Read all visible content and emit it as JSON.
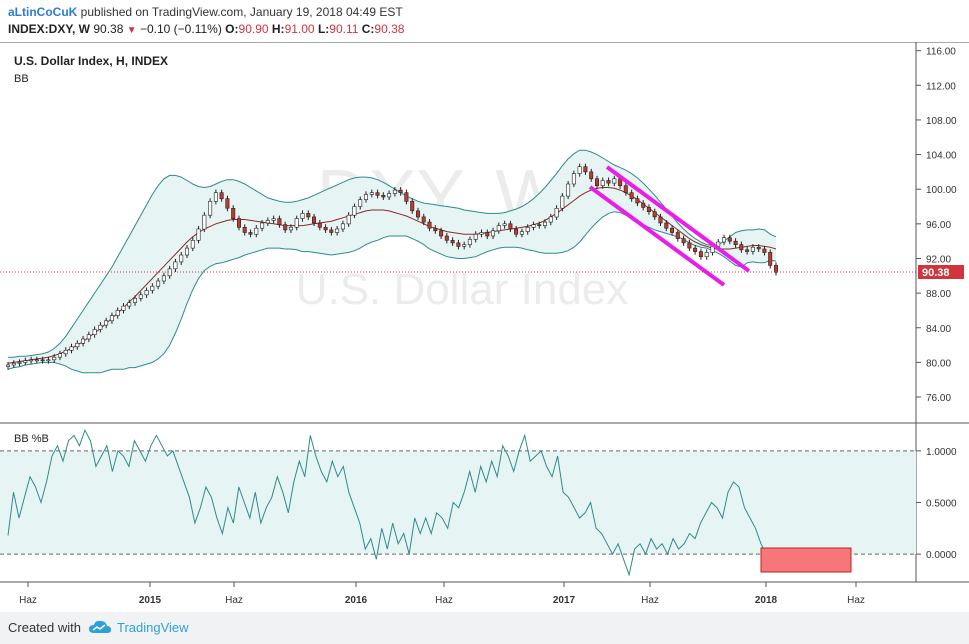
{
  "header": {
    "author": "aLtinCoCuK",
    "published_text": "published on TradingView.com, January 19, 2018 04:49 EST",
    "symbol": "INDEX:DXY, W",
    "last": "90.38",
    "change": "−0.10 (−0.11%)",
    "o_label": "O:",
    "o": "90.90",
    "h_label": "H:",
    "h": "91.00",
    "l_label": "L:",
    "l": "90.11",
    "c_label": "C:",
    "c": "90.38"
  },
  "watermark": {
    "symbol": "DXY, W",
    "name": "U.S. Dollar Index"
  },
  "colors": {
    "up": "#3b7a3b",
    "down": "#c0392b",
    "band": "#2e8b8b",
    "band_fill": "#e6f4f4",
    "basis": "#8b2a2a",
    "channel": "#e91ee9",
    "price_tag": "#d0343c",
    "osc": "#2e8b8b",
    "osc_fill": "#e6f4f4",
    "box": "#f5777a"
  },
  "chart_data": [
    {
      "type": "candlestick",
      "title": "U.S. Dollar Index, H, INDEX",
      "indicator_label": "BB",
      "ylim": [
        73,
        117
      ],
      "y_ticks": [
        "116.00",
        "112.00",
        "108.00",
        "104.00",
        "100.00",
        "96.00",
        "92.00",
        "88.00",
        "84.00",
        "80.00",
        "76.00"
      ],
      "last_price_label": "90.38",
      "x_labels": [
        "Haz",
        "2015",
        "Haz",
        "2016",
        "Haz",
        "2017",
        "Haz",
        "2018",
        "Haz"
      ],
      "series": [
        {
          "name": "close (weekly, approx.)",
          "values": [
            79.7,
            79.9,
            80.0,
            80.2,
            80.3,
            80.3,
            80.2,
            80.3,
            80.6,
            81.0,
            81.4,
            81.8,
            82.2,
            82.7,
            83.2,
            83.8,
            84.3,
            84.8,
            85.4,
            86.0,
            86.5,
            86.9,
            87.4,
            87.8,
            88.3,
            88.8,
            89.4,
            90.0,
            90.8,
            91.6,
            92.4,
            93.2,
            94.1,
            95.4,
            97.0,
            98.6,
            99.6,
            98.9,
            97.8,
            96.6,
            95.6,
            95.0,
            94.8,
            95.5,
            96.1,
            96.4,
            96.6,
            95.9,
            95.3,
            95.6,
            96.6,
            97.2,
            96.8,
            96.1,
            95.6,
            95.3,
            95.0,
            95.4,
            96.0,
            97.0,
            98.0,
            98.8,
            99.4,
            99.6,
            99.3,
            99.1,
            99.5,
            99.9,
            99.6,
            98.6,
            97.5,
            96.8,
            96.2,
            95.5,
            95.2,
            94.6,
            94.1,
            93.8,
            93.4,
            93.6,
            94.2,
            94.8,
            95.0,
            94.6,
            95.2,
            95.8,
            96.0,
            95.4,
            94.8,
            95.1,
            95.6,
            95.9,
            95.8,
            96.2,
            96.8,
            97.8,
            99.2,
            100.6,
            101.8,
            102.6,
            102.0,
            101.2,
            100.4,
            101.0,
            100.7,
            101.2,
            100.4,
            99.6,
            98.9,
            98.4,
            97.9,
            97.4,
            96.8,
            96.1,
            95.5,
            95.0,
            94.3,
            93.8,
            93.2,
            92.8,
            92.2,
            92.7,
            93.4,
            93.9,
            94.4,
            94.0,
            93.6,
            93.0,
            92.8,
            93.3,
            93.1,
            92.7,
            91.2,
            90.4
          ]
        },
        {
          "name": "BB upper (approx.)",
          "values": [
            80.6,
            80.6,
            80.7,
            80.7,
            80.8,
            80.9,
            81.0,
            81.2,
            81.6,
            82.2,
            83.0,
            84.0,
            85.0,
            86.0,
            87.0,
            88.0,
            89.0,
            90.0,
            91.0,
            92.2,
            93.4,
            94.6,
            95.8,
            97.0,
            98.2,
            99.4,
            100.4,
            101.2,
            101.6,
            101.6,
            101.4,
            101.0,
            100.6,
            100.3,
            100.2,
            100.3,
            100.6,
            100.9,
            101.1,
            101.1,
            100.9,
            100.6,
            100.2,
            99.8,
            99.4,
            99.0,
            98.8,
            98.6,
            98.5,
            98.5,
            98.6,
            98.8,
            99.0,
            99.3,
            99.6,
            99.9,
            100.2,
            100.5,
            100.8,
            101.1,
            101.3,
            101.4,
            101.4,
            101.3,
            101.1,
            100.8,
            100.4,
            100.0,
            99.6,
            99.2,
            98.9,
            98.6,
            98.4,
            98.3,
            98.2,
            98.1,
            98.0,
            97.9,
            97.8,
            97.6,
            97.5,
            97.4,
            97.3,
            97.2,
            97.2,
            97.2,
            97.3,
            97.5,
            97.7,
            98.0,
            98.4,
            98.9,
            99.5,
            100.2,
            101.0,
            101.8,
            102.7,
            103.5,
            104.1,
            104.5,
            104.5,
            104.3,
            104.0,
            103.6,
            103.2,
            102.8,
            102.5,
            102.2,
            101.8,
            101.3,
            100.7,
            100.0,
            99.3,
            98.5,
            97.7,
            96.9,
            96.1,
            95.4,
            94.8,
            94.3,
            93.9,
            93.6,
            93.5,
            93.6,
            94.0,
            94.5,
            95.0,
            95.2,
            95.3,
            95.3,
            95.4,
            95.3,
            94.8,
            94.5
          ]
        },
        {
          "name": "BB basis (approx.)",
          "values": [
            79.9,
            80.0,
            80.1,
            80.2,
            80.3,
            80.4,
            80.5,
            80.6,
            80.8,
            81.0,
            81.3,
            81.6,
            82.0,
            82.4,
            82.9,
            83.4,
            83.9,
            84.5,
            85.1,
            85.7,
            86.3,
            87.0,
            87.6,
            88.3,
            89.0,
            89.7,
            90.4,
            91.1,
            91.8,
            92.5,
            93.2,
            93.9,
            94.5,
            95.0,
            95.4,
            95.7,
            96.0,
            96.2,
            96.4,
            96.5,
            96.5,
            96.5,
            96.4,
            96.3,
            96.2,
            96.1,
            96.0,
            95.9,
            95.8,
            95.8,
            95.8,
            95.8,
            95.9,
            96.0,
            96.1,
            96.2,
            96.3,
            96.5,
            96.7,
            96.9,
            97.1,
            97.3,
            97.5,
            97.6,
            97.6,
            97.6,
            97.5,
            97.3,
            97.1,
            96.9,
            96.6,
            96.3,
            96.0,
            95.7,
            95.5,
            95.3,
            95.1,
            95.0,
            94.9,
            94.8,
            94.8,
            94.8,
            94.9,
            95.0,
            95.1,
            95.2,
            95.3,
            95.4,
            95.5,
            95.6,
            95.7,
            95.9,
            96.1,
            96.4,
            96.8,
            97.2,
            97.7,
            98.2,
            98.7,
            99.2,
            99.6,
            99.9,
            100.1,
            100.2,
            100.2,
            100.1,
            99.9,
            99.6,
            99.2,
            98.8,
            98.3,
            97.8,
            97.3,
            96.8,
            96.3,
            95.8,
            95.3,
            94.8,
            94.3,
            93.9,
            93.6,
            93.4,
            93.2,
            93.1,
            93.1,
            93.1,
            93.2,
            93.3,
            93.4,
            93.5,
            93.5,
            93.4,
            93.3,
            93.1
          ]
        },
        {
          "name": "BB lower (approx.)",
          "values": [
            79.2,
            79.4,
            79.5,
            79.7,
            79.8,
            79.9,
            80.0,
            80.0,
            80.0,
            79.8,
            79.6,
            79.2,
            79.0,
            78.8,
            78.8,
            78.8,
            78.8,
            79.0,
            79.2,
            79.2,
            79.2,
            79.4,
            79.4,
            79.6,
            79.8,
            80.0,
            80.4,
            81.0,
            82.0,
            83.4,
            85.0,
            86.8,
            88.4,
            89.7,
            90.6,
            91.1,
            91.4,
            91.5,
            91.7,
            91.9,
            92.1,
            92.4,
            92.6,
            92.8,
            93.0,
            93.2,
            93.2,
            93.2,
            93.1,
            93.1,
            93.0,
            92.8,
            92.8,
            92.7,
            92.6,
            92.5,
            92.4,
            92.5,
            92.6,
            92.7,
            92.9,
            93.2,
            93.6,
            93.9,
            94.1,
            94.4,
            94.6,
            94.6,
            94.6,
            94.6,
            94.3,
            94.0,
            93.6,
            93.1,
            92.8,
            92.5,
            92.2,
            92.1,
            92.0,
            92.0,
            92.1,
            92.2,
            92.5,
            92.8,
            93.0,
            93.2,
            93.3,
            93.3,
            93.3,
            93.2,
            93.0,
            92.9,
            92.7,
            92.6,
            92.6,
            92.6,
            92.7,
            92.9,
            93.3,
            93.9,
            94.7,
            95.5,
            96.2,
            96.8,
            97.2,
            97.4,
            97.3,
            97.0,
            96.6,
            96.3,
            95.9,
            95.6,
            95.3,
            95.1,
            94.9,
            94.7,
            94.5,
            94.2,
            93.8,
            93.5,
            93.3,
            93.2,
            92.9,
            92.6,
            92.2,
            91.7,
            91.2,
            91.0,
            91.5,
            91.6,
            91.5,
            91.5,
            91.8,
            91.7
          ]
        }
      ],
      "annotations": [
        "descending pink channel lines"
      ]
    },
    {
      "type": "line",
      "title": "BB %B",
      "ylim": [
        -0.27,
        1.27
      ],
      "y_ticks": [
        "1.0000",
        "0.5000",
        "0.0000"
      ],
      "band": [
        0,
        1
      ],
      "series": [
        {
          "name": "%B (approx.)",
          "values": [
            0.18,
            0.6,
            0.35,
            0.55,
            0.75,
            0.65,
            0.5,
            0.7,
            0.95,
            1.05,
            0.9,
            1.1,
            1.15,
            1.05,
            1.2,
            1.1,
            0.85,
            0.95,
            1.05,
            0.8,
            1.0,
            0.95,
            0.85,
            1.1,
            1.0,
            0.9,
            1.05,
            1.15,
            1.05,
            0.95,
            1.0,
            0.85,
            0.7,
            0.55,
            0.3,
            0.45,
            0.65,
            0.55,
            0.35,
            0.2,
            0.45,
            0.3,
            0.65,
            0.5,
            0.35,
            0.6,
            0.3,
            0.45,
            0.55,
            0.75,
            0.6,
            0.4,
            0.7,
            0.9,
            0.75,
            1.15,
            0.95,
            0.8,
            0.7,
            0.9,
            0.75,
            0.85,
            0.6,
            0.45,
            0.3,
            0.05,
            0.15,
            -0.05,
            0.25,
            0.05,
            0.3,
            0.1,
            0.2,
            0.0,
            0.35,
            0.2,
            0.35,
            0.2,
            0.4,
            0.35,
            0.25,
            0.5,
            0.45,
            0.6,
            0.8,
            0.6,
            0.85,
            0.7,
            0.9,
            0.75,
            1.05,
            0.95,
            0.8,
            1.0,
            1.15,
            0.9,
            0.95,
            1.0,
            0.85,
            0.75,
            0.95,
            0.6,
            0.55,
            0.45,
            0.35,
            0.4,
            0.5,
            0.25,
            0.2,
            0.1,
            0.0,
            0.1,
            -0.05,
            -0.2,
            0.05,
            0.1,
            0.0,
            0.15,
            0.05,
            0.1,
            0.0,
            0.15,
            0.05,
            0.1,
            0.2,
            0.15,
            0.3,
            0.4,
            0.5,
            0.45,
            0.35,
            0.6,
            0.7,
            0.65,
            0.45,
            0.35,
            0.25,
            0.1,
            0.0,
            -0.02
          ]
        }
      ],
      "annotations": [
        "red box near 0.0000 at the end"
      ]
    }
  ],
  "footer": {
    "created": "Created with",
    "brand": "TradingView"
  }
}
